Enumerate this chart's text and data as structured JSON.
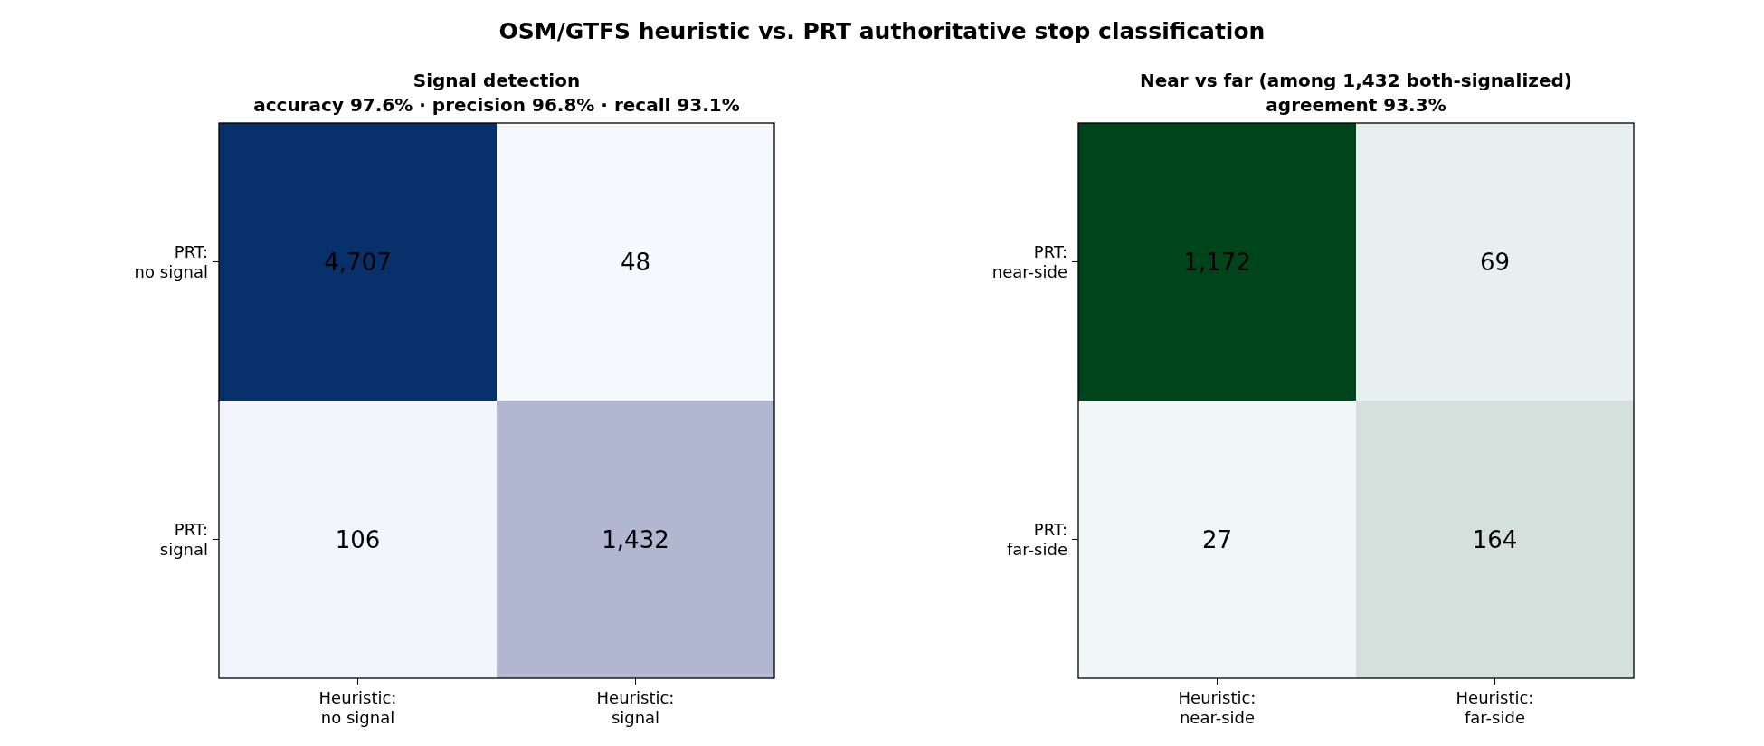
{
  "chart_data": [
    {
      "type": "heatmap",
      "title": "OSM/GTFS heuristic vs. PRT authoritative stop classification",
      "subtitle": "Signal detection\naccuracy 97.6%  ·  precision 96.8%  ·  recall 93.1%",
      "categories": [
        "Heuristic:\nno signal",
        "Heuristic:\nsignal"
      ],
      "y_categories": [
        "PRT:\nno signal",
        "PRT:\nsignal"
      ],
      "cells": [
        [
          4707,
          48
        ],
        [
          106,
          1432
        ]
      ],
      "cell_labels": [
        [
          "4,707",
          "48"
        ],
        [
          "106",
          "1,432"
        ]
      ],
      "color": "#08306b"
    },
    {
      "type": "heatmap",
      "subtitle": "Near vs far (among 1,432 both-signalized)\nagreement 93.3%",
      "categories": [
        "Heuristic:\nnear-side",
        "Heuristic:\nfar-side"
      ],
      "y_categories": [
        "PRT:\nnear-side",
        "PRT:\nfar-side"
      ],
      "cells": [
        [
          1172,
          69
        ],
        [
          27,
          164
        ]
      ],
      "cell_labels": [
        [
          "1,172",
          "69"
        ],
        [
          "27",
          "164"
        ]
      ],
      "color": "#00441b"
    }
  ]
}
